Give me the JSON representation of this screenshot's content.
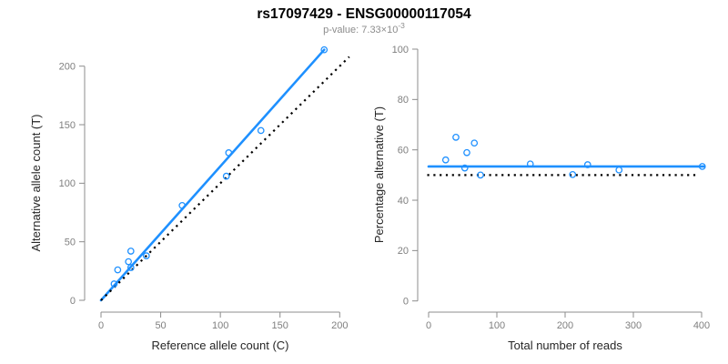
{
  "header": {
    "title": "rs17097429 - ENSG00000117054",
    "subtitle_main": "p-value: 7.33×10",
    "subtitle_exponent": "-3"
  },
  "colors": {
    "accent_blue": "#1E90FF",
    "dotted_black": "#000000",
    "axis_gray": "#8c8c8c",
    "tick_label_gray": "#7f7f7f",
    "axis_title_dark": "#262626",
    "subtitle_gray": "#8c8c8c",
    "background": "#ffffff"
  },
  "chart_data": [
    {
      "type": "scatter",
      "panel": "left",
      "xlabel": "Reference allele count (C)",
      "ylabel": "Alternative allele count (T)",
      "xlim": [
        0,
        200
      ],
      "ylim": [
        0,
        200
      ],
      "xticks": [
        0,
        50,
        100,
        150,
        200
      ],
      "yticks": [
        0,
        50,
        100,
        150,
        200
      ],
      "grid": false,
      "marker": "open-circle",
      "points": [
        [
          11,
          14
        ],
        [
          14,
          26
        ],
        [
          23,
          33
        ],
        [
          25,
          28
        ],
        [
          25,
          42
        ],
        [
          38,
          38
        ],
        [
          68,
          81
        ],
        [
          105,
          106
        ],
        [
          107,
          126
        ],
        [
          134,
          145
        ],
        [
          187,
          214
        ]
      ],
      "lines": [
        {
          "name": "fit-line",
          "style": "solid",
          "color": "#1E90FF",
          "from": [
            0,
            0
          ],
          "to": [
            187,
            214
          ]
        },
        {
          "name": "identity-line",
          "style": "dotted",
          "color": "#000000",
          "from": [
            0,
            0
          ],
          "to": [
            208,
            208
          ]
        }
      ]
    },
    {
      "type": "scatter",
      "panel": "right",
      "xlabel": "Total number of reads",
      "ylabel": "Percentage alternative (T)",
      "xlim": [
        0,
        400
      ],
      "ylim": [
        0,
        100
      ],
      "xticks": [
        0,
        100,
        200,
        300,
        400
      ],
      "yticks": [
        0,
        20,
        40,
        60,
        80,
        100
      ],
      "grid": false,
      "marker": "open-circle",
      "points": [
        [
          25,
          56.0
        ],
        [
          40,
          65.0
        ],
        [
          53,
          52.8
        ],
        [
          56,
          58.9
        ],
        [
          67,
          62.7
        ],
        [
          76,
          50.0
        ],
        [
          149,
          54.4
        ],
        [
          211,
          50.2
        ],
        [
          233,
          54.1
        ],
        [
          279,
          52.0
        ],
        [
          401,
          53.4
        ]
      ],
      "lines": [
        {
          "name": "mean-line",
          "style": "solid",
          "color": "#1E90FF",
          "from": [
            0,
            53.4
          ],
          "to": [
            404,
            53.4
          ]
        },
        {
          "name": "null-line",
          "style": "dotted",
          "color": "#000000",
          "from": [
            -2,
            50
          ],
          "to": [
            396,
            50
          ]
        }
      ]
    }
  ]
}
